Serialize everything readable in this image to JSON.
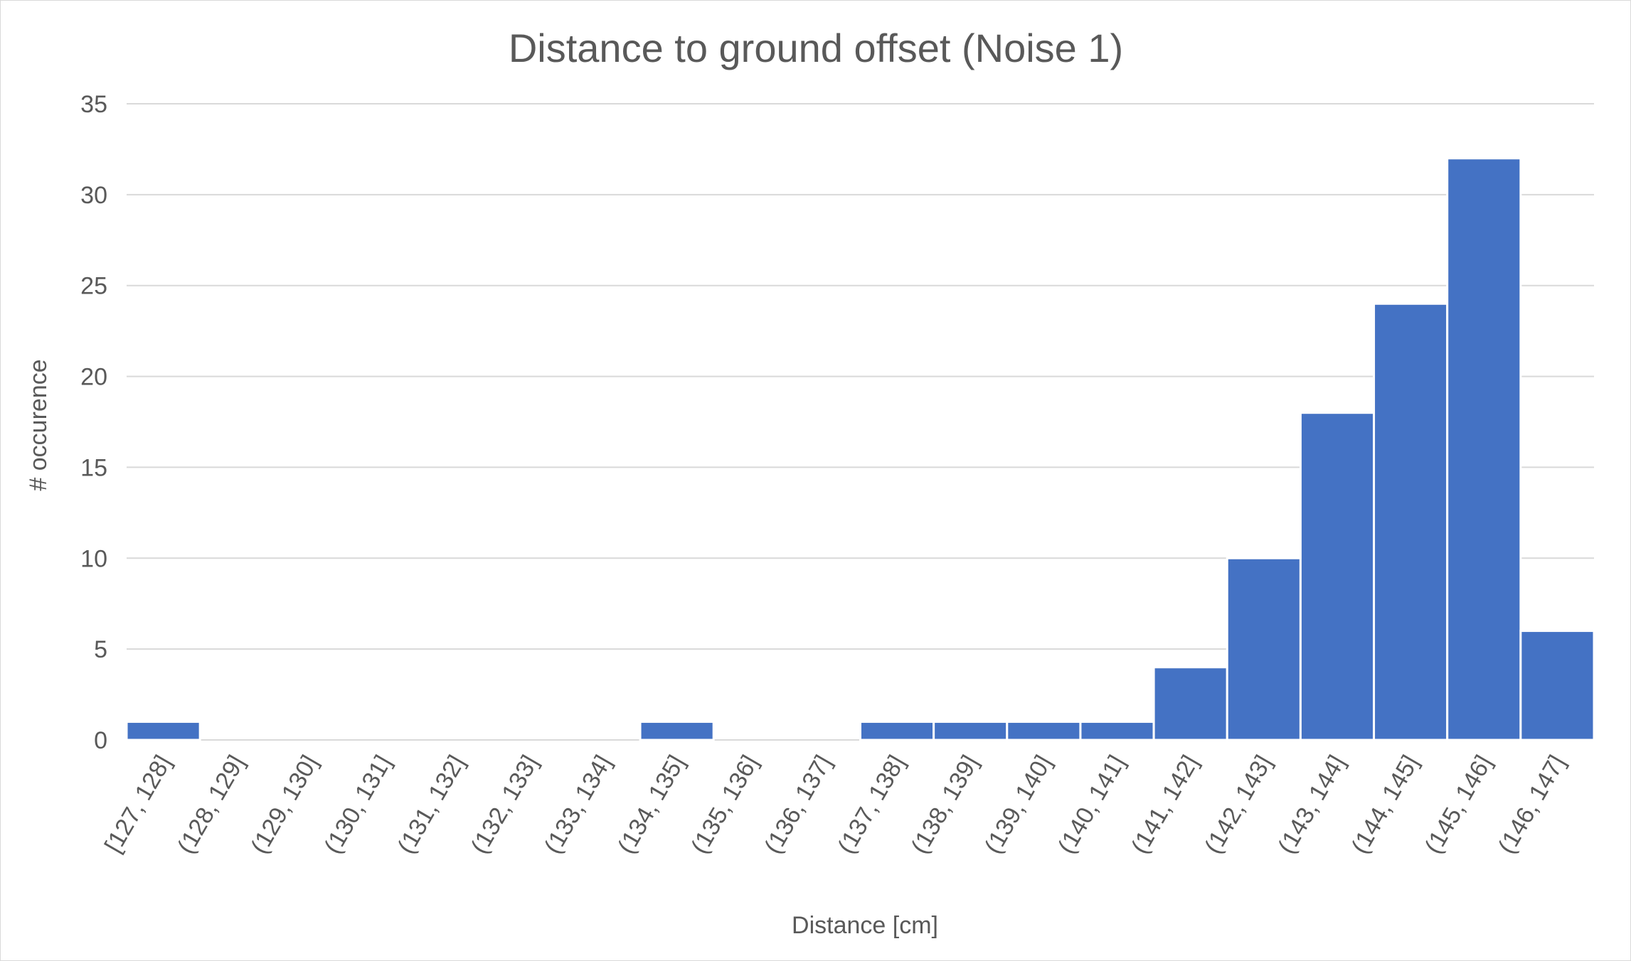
{
  "chart_data": {
    "type": "bar",
    "title": "Distance to ground offset (Noise 1)",
    "xlabel": "Distance [cm]",
    "ylabel": "# occurence",
    "ylim": [
      0,
      35
    ],
    "yticks": [
      0,
      5,
      10,
      15,
      20,
      25,
      30,
      35
    ],
    "grid": true,
    "legend": "none",
    "bar_color": "#4472C4",
    "categories": [
      "[127, 128]",
      "(128, 129]",
      "(129, 130]",
      "(130, 131]",
      "(131, 132]",
      "(132, 133]",
      "(133, 134]",
      "(134, 135]",
      "(135, 136]",
      "(136, 137]",
      "(137, 138]",
      "(138, 139]",
      "(139, 140]",
      "(140, 141]",
      "(141, 142]",
      "(142, 143]",
      "(143, 144]",
      "(144, 145]",
      "(145, 146]",
      "(146, 147]"
    ],
    "values": [
      1,
      0,
      0,
      0,
      0,
      0,
      0,
      1,
      0,
      0,
      1,
      1,
      1,
      1,
      4,
      10,
      18,
      24,
      32,
      6
    ]
  }
}
